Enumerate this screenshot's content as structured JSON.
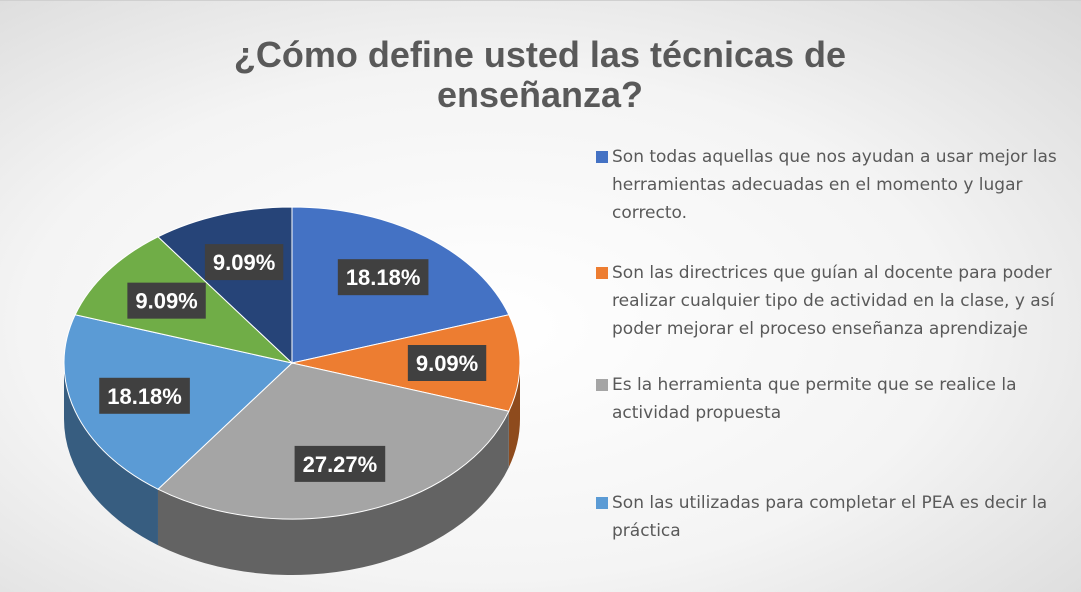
{
  "chart_data": {
    "type": "pie",
    "title": "¿Cómo define usted las técnicas de enseñanza?",
    "categories": [
      "Son todas aquellas que nos ayudan a usar mejor las herramientas adecuadas en el momento y lugar correcto.",
      "Son las directrices que guían al docente para poder realizar cualquier tipo de actividad en la clase, y así poder mejorar el proceso enseñanza aprendizaje",
      "Es la herramienta que permite que se realice la actividad propuesta",
      "Son las utilizadas para completar el PEA es decir la práctica",
      null,
      null
    ],
    "values": [
      18.18,
      9.09,
      27.27,
      18.18,
      9.09,
      9.09
    ],
    "value_labels": [
      "18.18%",
      "9.09%",
      "27.27%",
      "18.18%",
      "9.09%",
      "9.09%"
    ],
    "colors": [
      "#4472c4",
      "#ed7d31",
      "#a5a5a5",
      "#5b9bd5",
      "#70ad47",
      "#264478"
    ]
  }
}
